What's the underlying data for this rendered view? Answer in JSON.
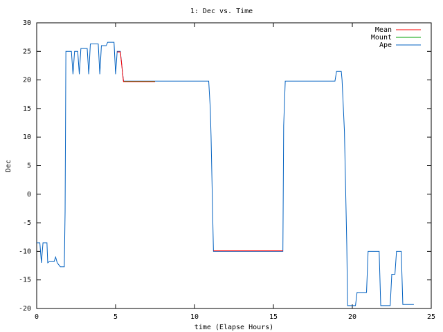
{
  "chart_data": {
    "type": "line",
    "title": "1: Dec vs. Time",
    "x_label": "time (Elapse Hours)",
    "y_label": "Dec",
    "xlim": [
      0,
      25
    ],
    "xticks": [
      0,
      5,
      10,
      15,
      20,
      25
    ],
    "ylim": [
      -20,
      30
    ],
    "yticks": [
      -20,
      -15,
      -10,
      -5,
      0,
      5,
      10,
      15,
      20,
      25,
      30
    ],
    "grid": false,
    "legend": "top-right",
    "series": [
      {
        "name": "Mean",
        "color": "#ff0000",
        "x": [
          5.1,
          5.3,
          5.5,
          7.5,
          null,
          11.2,
          15.6
        ],
        "values": [
          24.9,
          24.9,
          19.7,
          19.7,
          null,
          -9.9,
          -9.9
        ]
      },
      {
        "name": "Mount",
        "color": "#00a000",
        "x": [
          5.5,
          7.5
        ],
        "values": [
          19.75,
          19.75
        ]
      },
      {
        "name": "Ape",
        "color": "#0060c0",
        "x": [
          0,
          0.2,
          0.3,
          0.4,
          0.65,
          0.7,
          0.8,
          1.1,
          1.2,
          1.3,
          1.5,
          1.75,
          1.8,
          1.85,
          2.2,
          2.3,
          2.4,
          2.6,
          2.7,
          2.8,
          3.2,
          3.3,
          3.4,
          3.9,
          4.0,
          4.1,
          4.4,
          4.5,
          4.9,
          5.0,
          5.1,
          5.3,
          5.5,
          10.9,
          11.0,
          11.05,
          11.2,
          15.6,
          15.65,
          15.75,
          18.9,
          19.0,
          19.3,
          19.35,
          19.5,
          19.65,
          19.7,
          20.2,
          20.3,
          20.9,
          21.0,
          21.7,
          21.8,
          22.4,
          22.5,
          22.7,
          22.8,
          23.1,
          23.2,
          23.9
        ],
        "values": [
          -8.5,
          -8.5,
          -12,
          -8.5,
          -8.5,
          -12,
          -11.8,
          -11.8,
          -11,
          -12,
          -12.7,
          -12.7,
          -3,
          25,
          25,
          21,
          25,
          25,
          21,
          25.5,
          25.5,
          21,
          26.3,
          26.3,
          21,
          26,
          26,
          26.6,
          26.6,
          21,
          25,
          25,
          19.8,
          19.8,
          15,
          10,
          -10,
          -10,
          12,
          19.8,
          19.8,
          21.5,
          21.5,
          20,
          11,
          -9,
          -19.5,
          -19.5,
          -17.2,
          -17.2,
          -10,
          -10,
          -19.5,
          -19.5,
          -14,
          -14,
          -10,
          -10,
          -19.3,
          -19.3
        ]
      }
    ]
  }
}
